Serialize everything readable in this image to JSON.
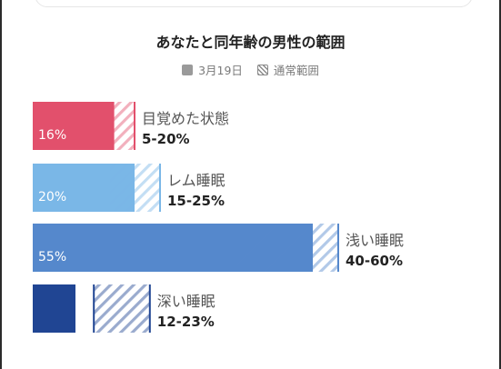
{
  "title": "あなたと同年齢の男性の範囲",
  "legend": {
    "actual_label": "3月19日",
    "range_label": "通常範囲"
  },
  "chart_data": {
    "type": "bar",
    "orientation": "horizontal",
    "categories": [
      "目覚めた状態",
      "レム睡眠",
      "浅い睡眠",
      "深い睡眠"
    ],
    "series": [
      {
        "name": "3月19日",
        "values": [
          16,
          20,
          55,
          null
        ],
        "value_labels": [
          "16%",
          "20%",
          "55%",
          ""
        ]
      },
      {
        "name": "通常範囲",
        "ranges": [
          [
            5,
            20
          ],
          [
            15,
            25
          ],
          [
            40,
            60
          ],
          [
            12,
            23
          ]
        ],
        "range_labels": [
          "5-20%",
          "15-25%",
          "40-60%",
          "12-23%"
        ]
      }
    ],
    "colors": [
      "#e2506c",
      "#7ab7e7",
      "#5588cc",
      "#204593"
    ],
    "hatch_colors": [
      "#e2506c",
      "#7ab7e7",
      "#5588cc",
      "#204593"
    ],
    "xlim": [
      0,
      100
    ],
    "grid": false
  }
}
